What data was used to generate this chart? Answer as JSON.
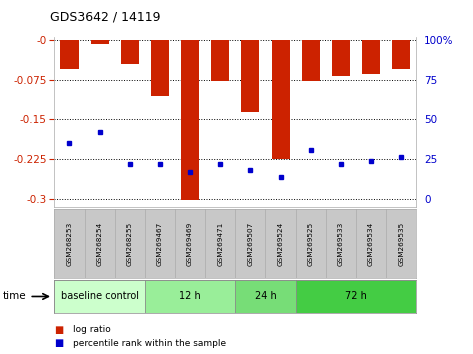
{
  "title": "GDS3642 / 14119",
  "samples": [
    "GSM268253",
    "GSM268254",
    "GSM268255",
    "GSM269467",
    "GSM269469",
    "GSM269471",
    "GSM269507",
    "GSM269524",
    "GSM269525",
    "GSM269533",
    "GSM269534",
    "GSM269535"
  ],
  "log_ratio": [
    -0.055,
    -0.008,
    -0.045,
    -0.105,
    -0.302,
    -0.078,
    -0.135,
    -0.225,
    -0.078,
    -0.068,
    -0.065,
    -0.055
  ],
  "percentile_yvals": [
    -0.195,
    -0.173,
    -0.233,
    -0.233,
    -0.248,
    -0.233,
    -0.245,
    -0.258,
    -0.208,
    -0.233,
    -0.228,
    -0.22
  ],
  "groups": [
    {
      "label": "baseline control",
      "start": 0,
      "end": 3,
      "color": "#ccffcc"
    },
    {
      "label": "12 h",
      "start": 3,
      "end": 6,
      "color": "#99ee99"
    },
    {
      "label": "24 h",
      "start": 6,
      "end": 8,
      "color": "#77dd77"
    },
    {
      "label": "72 h",
      "start": 8,
      "end": 12,
      "color": "#44cc44"
    }
  ],
  "ylim": [
    -0.315,
    0.005
  ],
  "yticks": [
    0,
    -0.075,
    -0.15,
    -0.225,
    -0.3
  ],
  "yticklabels": [
    "-0",
    "-0.075",
    "-0.15",
    "-0.225",
    "-0.3"
  ],
  "y2ticks": [
    0,
    25,
    50,
    75,
    100
  ],
  "bar_color": "#cc2200",
  "dot_color": "#0000cc",
  "bar_width": 0.6,
  "bg_color": "#ffffff",
  "label_area_color": "#c8c8c8",
  "time_label": "time"
}
